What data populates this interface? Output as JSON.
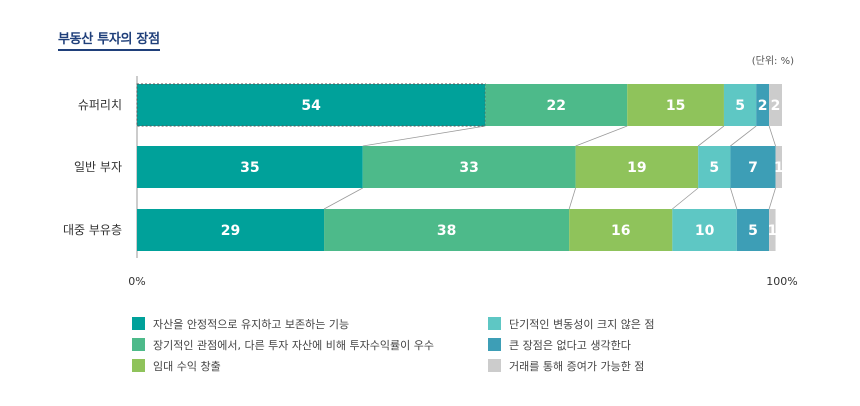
{
  "title": "부동산 투자의 장점",
  "unit": "(단위: %)",
  "chart_data": {
    "type": "bar",
    "orientation": "horizontal-stacked-100",
    "categories": [
      "슈퍼리치",
      "일반 부자",
      "대중 부유층"
    ],
    "series": [
      {
        "name": "자산을 안정적으로 유지하고 보존하는 기능",
        "color": "#00a19a",
        "values": [
          54,
          35,
          29
        ]
      },
      {
        "name": "장기적인 관점에서, 다른 투자 자산에 비해 투자수익률이 우수",
        "color": "#4dba8a",
        "values": [
          22,
          33,
          38
        ]
      },
      {
        "name": "임대 수익 창출",
        "color": "#8fc35b",
        "values": [
          15,
          19,
          16
        ]
      },
      {
        "name": "단기적인 변동성이 크지 않은 점",
        "color": "#5ec7c4",
        "values": [
          5,
          5,
          10
        ]
      },
      {
        "name": "큰 장점은 없다고 생각한다",
        "color": "#3d9eb6",
        "values": [
          2,
          7,
          5
        ]
      },
      {
        "name": "거래를 통해 증여가 가능한 점",
        "color": "#cccccc",
        "values": [
          2,
          1,
          1
        ]
      }
    ],
    "xlim": [
      0,
      100
    ],
    "tick_labels": {
      "start": "0%",
      "end": "100%"
    },
    "legend_position": "bottom",
    "legend_columns": [
      [
        0,
        1,
        2
      ],
      [
        3,
        4,
        5
      ]
    ]
  }
}
